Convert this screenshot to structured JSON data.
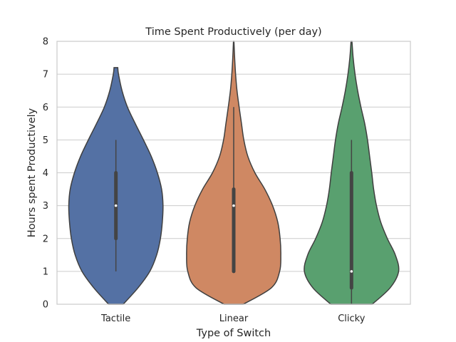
{
  "chart_data": {
    "type": "violin",
    "title": "Time Spent Productively (per day)",
    "xlabel": "Type of Switch",
    "ylabel": "Hours spent Productively",
    "ylim": [
      0,
      8
    ],
    "yticks": [
      0,
      1,
      2,
      3,
      4,
      5,
      6,
      7,
      8
    ],
    "grid": "horizontal",
    "categories": [
      "Tactile",
      "Linear",
      "Clicky"
    ],
    "colors": [
      "#5471a4",
      "#cf8863",
      "#59a06f"
    ],
    "violins": [
      {
        "category": "Tactile",
        "whisker": [
          1,
          5
        ],
        "iqr": [
          2,
          4
        ],
        "median": 3,
        "density": [
          [
            0,
            0.155
          ],
          [
            0.5,
            0.47
          ],
          [
            1,
            0.72
          ],
          [
            1.5,
            0.865
          ],
          [
            2,
            0.945
          ],
          [
            2.5,
            0.985
          ],
          [
            3,
            1.0
          ],
          [
            3.5,
            0.97
          ],
          [
            4,
            0.88
          ],
          [
            4.5,
            0.75
          ],
          [
            5,
            0.585
          ],
          [
            5.5,
            0.41
          ],
          [
            6,
            0.245
          ],
          [
            6.5,
            0.13
          ],
          [
            7,
            0.055
          ],
          [
            7.2,
            0.04
          ]
        ]
      },
      {
        "category": "Linear",
        "whisker": [
          1,
          6
        ],
        "iqr": [
          1,
          3.5
        ],
        "median": 3,
        "density": [
          [
            0,
            0.205
          ],
          [
            0.5,
            0.8
          ],
          [
            1,
            0.975
          ],
          [
            1.5,
            1.0
          ],
          [
            2,
            0.985
          ],
          [
            2.5,
            0.935
          ],
          [
            3,
            0.825
          ],
          [
            3.5,
            0.66
          ],
          [
            4,
            0.45
          ],
          [
            4.5,
            0.3
          ],
          [
            5,
            0.215
          ],
          [
            5.5,
            0.165
          ],
          [
            6,
            0.115
          ],
          [
            6.5,
            0.07
          ],
          [
            7,
            0.04
          ],
          [
            7.5,
            0.02
          ],
          [
            8,
            0.005
          ]
        ]
      },
      {
        "category": "Clicky",
        "whisker": [
          0,
          5
        ],
        "iqr": [
          0.5,
          4
        ],
        "median": 1,
        "density": [
          [
            0,
            0.44
          ],
          [
            0.5,
            0.82
          ],
          [
            1,
            1.0
          ],
          [
            1.5,
            0.93
          ],
          [
            2,
            0.76
          ],
          [
            2.5,
            0.62
          ],
          [
            3,
            0.53
          ],
          [
            3.5,
            0.47
          ],
          [
            4,
            0.43
          ],
          [
            4.5,
            0.385
          ],
          [
            5,
            0.34
          ],
          [
            5.5,
            0.28
          ],
          [
            6,
            0.2
          ],
          [
            6.5,
            0.13
          ],
          [
            7,
            0.075
          ],
          [
            7.5,
            0.035
          ],
          [
            8,
            0.01
          ]
        ]
      }
    ]
  }
}
